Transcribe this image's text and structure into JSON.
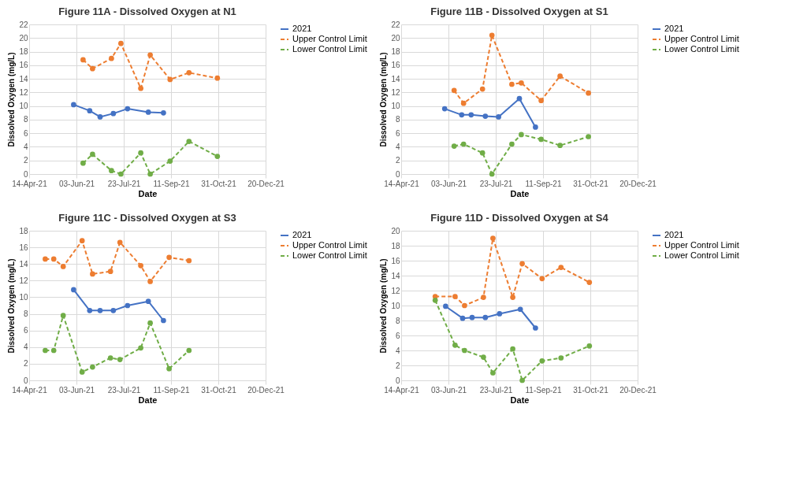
{
  "chart_data": [
    {
      "type": "line",
      "title": "Figure 11A - Dissolved Oxygen at N1",
      "xlabel": "Date",
      "ylabel": "Dissolved Oxygen (mg/L)",
      "xlim": [
        "2021-04-14",
        "2021-12-20"
      ],
      "xticks": [
        {
          "value": "2021-04-14",
          "label": "14-Apr-21"
        },
        {
          "value": "2021-06-03",
          "label": "03-Jun-21"
        },
        {
          "value": "2021-07-23",
          "label": "23-Jul-21"
        },
        {
          "value": "2021-09-11",
          "label": "11-Sep-21"
        },
        {
          "value": "2021-10-31",
          "label": "31-Oct-21"
        },
        {
          "value": "2021-12-20",
          "label": "20-Dec-21"
        }
      ],
      "ylim": [
        0,
        22
      ],
      "yticks": [
        0,
        2,
        4,
        6,
        8,
        10,
        12,
        14,
        16,
        18,
        20,
        22
      ],
      "grid": true,
      "legend": "right",
      "marker": "circle",
      "series": [
        {
          "name": "2021",
          "color": "#4472c4",
          "line_style": "solid",
          "x": [
            "2021-05-31",
            "2021-06-17",
            "2021-06-28",
            "2021-07-12",
            "2021-07-27",
            "2021-08-18",
            "2021-09-03"
          ],
          "values": [
            10.2,
            9.3,
            8.4,
            8.9,
            9.6,
            9.1,
            9.0
          ]
        },
        {
          "name": "Upper Control Limit",
          "color": "#ed7d31",
          "line_style": "dashed",
          "x": [
            "2021-06-10",
            "2021-06-20",
            "2021-07-10",
            "2021-07-20",
            "2021-08-10",
            "2021-08-20",
            "2021-09-10",
            "2021-09-30",
            "2021-10-30"
          ],
          "values": [
            16.8,
            15.5,
            17.0,
            19.2,
            12.6,
            17.5,
            13.9,
            14.9,
            14.1
          ]
        },
        {
          "name": "Lower Control Limit",
          "color": "#70ad47",
          "line_style": "dashed",
          "x": [
            "2021-06-10",
            "2021-06-20",
            "2021-07-10",
            "2021-07-20",
            "2021-08-10",
            "2021-08-20",
            "2021-09-10",
            "2021-09-30",
            "2021-10-30"
          ],
          "values": [
            1.6,
            2.9,
            0.5,
            0.0,
            3.1,
            0.0,
            1.9,
            4.8,
            2.6
          ]
        }
      ]
    },
    {
      "type": "line",
      "title": "Figure 11B - Dissolved Oxygen at S1",
      "xlabel": "Date",
      "ylabel": "Dissolved Oxygen (mg/L)",
      "xlim": [
        "2021-04-14",
        "2021-12-20"
      ],
      "xticks": [
        {
          "value": "2021-04-14",
          "label": "14-Apr-21"
        },
        {
          "value": "2021-06-03",
          "label": "03-Jun-21"
        },
        {
          "value": "2021-07-23",
          "label": "23-Jul-21"
        },
        {
          "value": "2021-09-11",
          "label": "11-Sep-21"
        },
        {
          "value": "2021-10-31",
          "label": "31-Oct-21"
        },
        {
          "value": "2021-12-20",
          "label": "20-Dec-21"
        }
      ],
      "ylim": [
        0,
        22
      ],
      "yticks": [
        0,
        2,
        4,
        6,
        8,
        10,
        12,
        14,
        16,
        18,
        20,
        22
      ],
      "grid": true,
      "legend": "right",
      "marker": "circle",
      "series": [
        {
          "name": "2021",
          "color": "#4472c4",
          "line_style": "solid",
          "x": [
            "2021-05-30",
            "2021-06-17",
            "2021-06-27",
            "2021-07-12",
            "2021-07-26",
            "2021-08-17",
            "2021-09-03"
          ],
          "values": [
            9.6,
            8.7,
            8.7,
            8.5,
            8.4,
            11.1,
            6.9
          ]
        },
        {
          "name": "Upper Control Limit",
          "color": "#ed7d31",
          "line_style": "dashed",
          "x": [
            "2021-06-09",
            "2021-06-19",
            "2021-07-09",
            "2021-07-19",
            "2021-08-09",
            "2021-08-19",
            "2021-09-09",
            "2021-09-29",
            "2021-10-29"
          ],
          "values": [
            12.3,
            10.4,
            12.5,
            20.4,
            13.2,
            13.4,
            10.8,
            14.4,
            11.9
          ]
        },
        {
          "name": "Lower Control Limit",
          "color": "#70ad47",
          "line_style": "dashed",
          "x": [
            "2021-06-09",
            "2021-06-19",
            "2021-07-09",
            "2021-07-19",
            "2021-08-09",
            "2021-08-19",
            "2021-09-09",
            "2021-09-29",
            "2021-10-29"
          ],
          "values": [
            4.1,
            4.4,
            3.1,
            0.0,
            4.4,
            5.8,
            5.1,
            4.2,
            5.5
          ]
        }
      ]
    },
    {
      "type": "line",
      "title": "Figure 11C - Dissolved Oxygen at S3",
      "xlabel": "Date",
      "ylabel": "Dissolved Oxygen (mg/L)",
      "xlim": [
        "2021-04-14",
        "2021-12-20"
      ],
      "xticks": [
        {
          "value": "2021-04-14",
          "label": "14-Apr-21"
        },
        {
          "value": "2021-06-03",
          "label": "03-Jun-21"
        },
        {
          "value": "2021-07-23",
          "label": "23-Jul-21"
        },
        {
          "value": "2021-09-11",
          "label": "11-Sep-21"
        },
        {
          "value": "2021-10-31",
          "label": "31-Oct-21"
        },
        {
          "value": "2021-12-20",
          "label": "20-Dec-21"
        }
      ],
      "ylim": [
        0,
        18
      ],
      "yticks": [
        0,
        2,
        4,
        6,
        8,
        10,
        12,
        14,
        16,
        18
      ],
      "grid": true,
      "legend": "right",
      "marker": "circle",
      "series": [
        {
          "name": "2021",
          "color": "#4472c4",
          "line_style": "solid",
          "x": [
            "2021-05-31",
            "2021-06-17",
            "2021-06-28",
            "2021-07-12",
            "2021-07-27",
            "2021-08-18",
            "2021-09-03"
          ],
          "values": [
            10.9,
            8.4,
            8.4,
            8.4,
            9.0,
            9.5,
            7.2
          ]
        },
        {
          "name": "Upper Control Limit",
          "color": "#ed7d31",
          "line_style": "dashed",
          "x": [
            "2021-05-01",
            "2021-05-10",
            "2021-05-20",
            "2021-06-09",
            "2021-06-20",
            "2021-07-09",
            "2021-07-19",
            "2021-08-10",
            "2021-08-20",
            "2021-09-09",
            "2021-09-30"
          ],
          "values": [
            14.6,
            14.6,
            13.7,
            16.8,
            12.8,
            13.1,
            16.6,
            13.8,
            11.9,
            14.8,
            14.4
          ]
        },
        {
          "name": "Lower Control Limit",
          "color": "#70ad47",
          "line_style": "dashed",
          "x": [
            "2021-05-01",
            "2021-05-10",
            "2021-05-20",
            "2021-06-09",
            "2021-06-20",
            "2021-07-09",
            "2021-07-19",
            "2021-08-10",
            "2021-08-20",
            "2021-09-09",
            "2021-09-30"
          ],
          "values": [
            3.6,
            3.6,
            7.8,
            1.0,
            1.6,
            2.7,
            2.5,
            3.9,
            6.9,
            1.4,
            3.6
          ]
        }
      ]
    },
    {
      "type": "line",
      "title": "Figure 11D - Dissolved Oxygen at S4",
      "xlabel": "Date",
      "ylabel": "Dissolved Oxygen (mg/L)",
      "xlim": [
        "2021-04-14",
        "2021-12-20"
      ],
      "xticks": [
        {
          "value": "2021-04-14",
          "label": "14-Apr-21"
        },
        {
          "value": "2021-06-03",
          "label": "03-Jun-21"
        },
        {
          "value": "2021-07-23",
          "label": "23-Jul-21"
        },
        {
          "value": "2021-09-11",
          "label": "11-Sep-21"
        },
        {
          "value": "2021-10-31",
          "label": "31-Oct-21"
        },
        {
          "value": "2021-12-20",
          "label": "20-Dec-21"
        }
      ],
      "ylim": [
        0,
        20
      ],
      "yticks": [
        0,
        2,
        4,
        6,
        8,
        10,
        12,
        14,
        16,
        18,
        20
      ],
      "grid": true,
      "legend": "right",
      "marker": "circle",
      "series": [
        {
          "name": "2021",
          "color": "#4472c4",
          "line_style": "solid",
          "x": [
            "2021-05-31",
            "2021-06-18",
            "2021-06-28",
            "2021-07-12",
            "2021-07-27",
            "2021-08-18",
            "2021-09-03"
          ],
          "values": [
            9.9,
            8.3,
            8.4,
            8.4,
            8.9,
            9.5,
            7.0
          ]
        },
        {
          "name": "Upper Control Limit",
          "color": "#ed7d31",
          "line_style": "dashed",
          "x": [
            "2021-05-20",
            "2021-06-10",
            "2021-06-20",
            "2021-07-10",
            "2021-07-20",
            "2021-08-10",
            "2021-08-20",
            "2021-09-10",
            "2021-09-30",
            "2021-10-30"
          ],
          "values": [
            11.2,
            11.2,
            10.0,
            11.1,
            19.0,
            11.1,
            15.6,
            13.6,
            15.1,
            13.1
          ]
        },
        {
          "name": "Lower Control Limit",
          "color": "#70ad47",
          "line_style": "dashed",
          "x": [
            "2021-05-20",
            "2021-06-10",
            "2021-06-20",
            "2021-07-10",
            "2021-07-20",
            "2021-08-10",
            "2021-08-20",
            "2021-09-10",
            "2021-09-30",
            "2021-10-30"
          ],
          "values": [
            10.7,
            4.7,
            4.0,
            3.1,
            1.0,
            4.2,
            0.0,
            2.6,
            3.0,
            4.6
          ]
        }
      ]
    }
  ]
}
